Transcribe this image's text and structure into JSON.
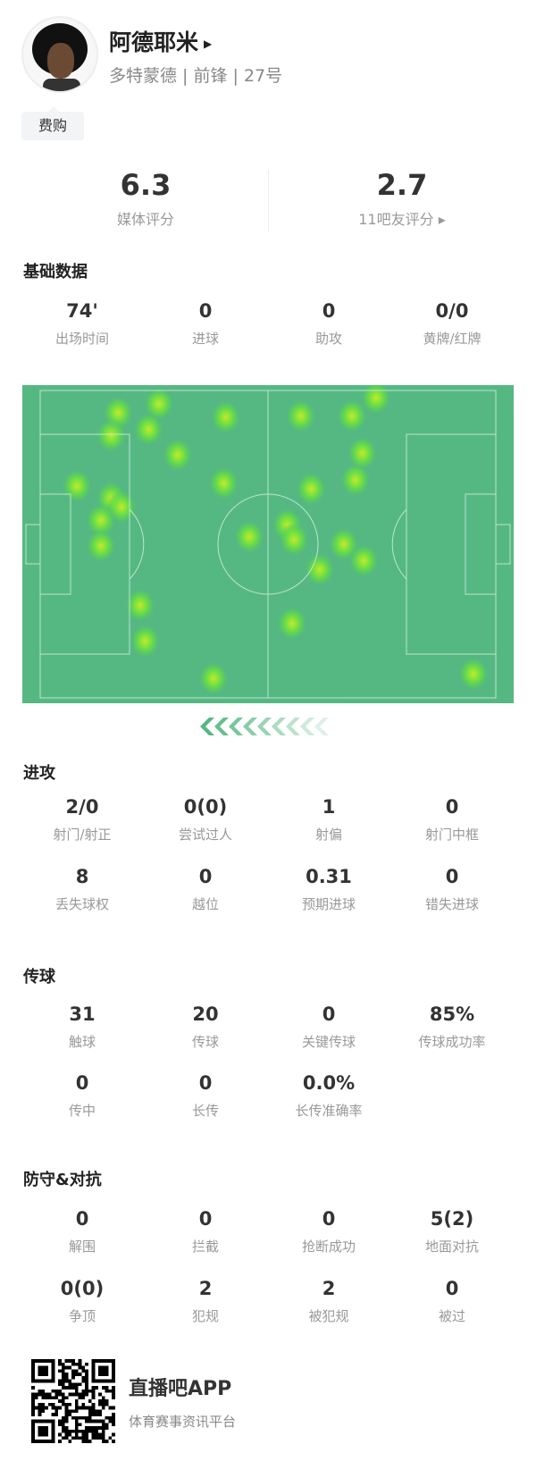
{
  "player": {
    "name": "阿德耶米",
    "subtitle": "多特蒙德 | 前锋 | 27号",
    "tag": "费购"
  },
  "ratings": [
    {
      "value": "6.3",
      "label": "媒体评分"
    },
    {
      "value": "2.7",
      "label": "11吧友评分 ▸"
    }
  ],
  "basic": {
    "title": "基础数据",
    "stats": [
      {
        "value": "74'",
        "label": "出场时间"
      },
      {
        "value": "0",
        "label": "进球"
      },
      {
        "value": "0",
        "label": "助攻"
      },
      {
        "value": "0/0",
        "label": "黄牌/红牌"
      }
    ]
  },
  "heatmap": {
    "pitch_color": "#55b882",
    "line_color": "#cfeedd",
    "attack_direction": "left",
    "points": [
      [
        19.5,
        8.7
      ],
      [
        18.1,
        15.8
      ],
      [
        27.8,
        5.9
      ],
      [
        25.7,
        13.9
      ],
      [
        41.4,
        10.1
      ],
      [
        31.6,
        21.9
      ],
      [
        41.0,
        30.8
      ],
      [
        11.1,
        31.7
      ],
      [
        18.1,
        35.5
      ],
      [
        20.2,
        38.3
      ],
      [
        16.0,
        42.5
      ],
      [
        16.0,
        50.5
      ],
      [
        24.0,
        69.2
      ],
      [
        25.0,
        80.5
      ],
      [
        38.9,
        92.2
      ],
      [
        46.2,
        47.7
      ],
      [
        53.9,
        43.9
      ],
      [
        55.3,
        48.6
      ],
      [
        65.4,
        50.0
      ],
      [
        69.5,
        55.2
      ],
      [
        60.5,
        58.0
      ],
      [
        54.9,
        74.9
      ],
      [
        56.7,
        9.7
      ],
      [
        67.1,
        9.7
      ],
      [
        72.0,
        4.0
      ],
      [
        69.2,
        21.4
      ],
      [
        67.8,
        29.8
      ],
      [
        58.8,
        32.6
      ],
      [
        91.8,
        90.8
      ]
    ]
  },
  "attack": {
    "title": "进攻",
    "rows": [
      [
        {
          "value": "2/0",
          "label": "射门/射正"
        },
        {
          "value": "0(0)",
          "label": "尝试过人"
        },
        {
          "value": "1",
          "label": "射偏"
        },
        {
          "value": "0",
          "label": "射门中框"
        }
      ],
      [
        {
          "value": "8",
          "label": "丢失球权"
        },
        {
          "value": "0",
          "label": "越位"
        },
        {
          "value": "0.31",
          "label": "预期进球"
        },
        {
          "value": "0",
          "label": "错失进球"
        }
      ]
    ]
  },
  "passing": {
    "title": "传球",
    "rows": [
      [
        {
          "value": "31",
          "label": "触球"
        },
        {
          "value": "20",
          "label": "传球"
        },
        {
          "value": "0",
          "label": "关键传球"
        },
        {
          "value": "85%",
          "label": "传球成功率"
        }
      ],
      [
        {
          "value": "0",
          "label": "传中"
        },
        {
          "value": "0",
          "label": "长传"
        },
        {
          "value": "0.0%",
          "label": "长传准确率"
        }
      ]
    ]
  },
  "defense": {
    "title": "防守&对抗",
    "rows": [
      [
        {
          "value": "0",
          "label": "解围"
        },
        {
          "value": "0",
          "label": "拦截"
        },
        {
          "value": "0",
          "label": "抢断成功"
        },
        {
          "value": "5(2)",
          "label": "地面对抗"
        }
      ],
      [
        {
          "value": "0(0)",
          "label": "争顶"
        },
        {
          "value": "2",
          "label": "犯规"
        },
        {
          "value": "2",
          "label": "被犯规"
        },
        {
          "value": "0",
          "label": "被过"
        }
      ]
    ]
  },
  "footer": {
    "app_name": "直播吧APP",
    "slogan": "体育赛事资讯平台"
  }
}
